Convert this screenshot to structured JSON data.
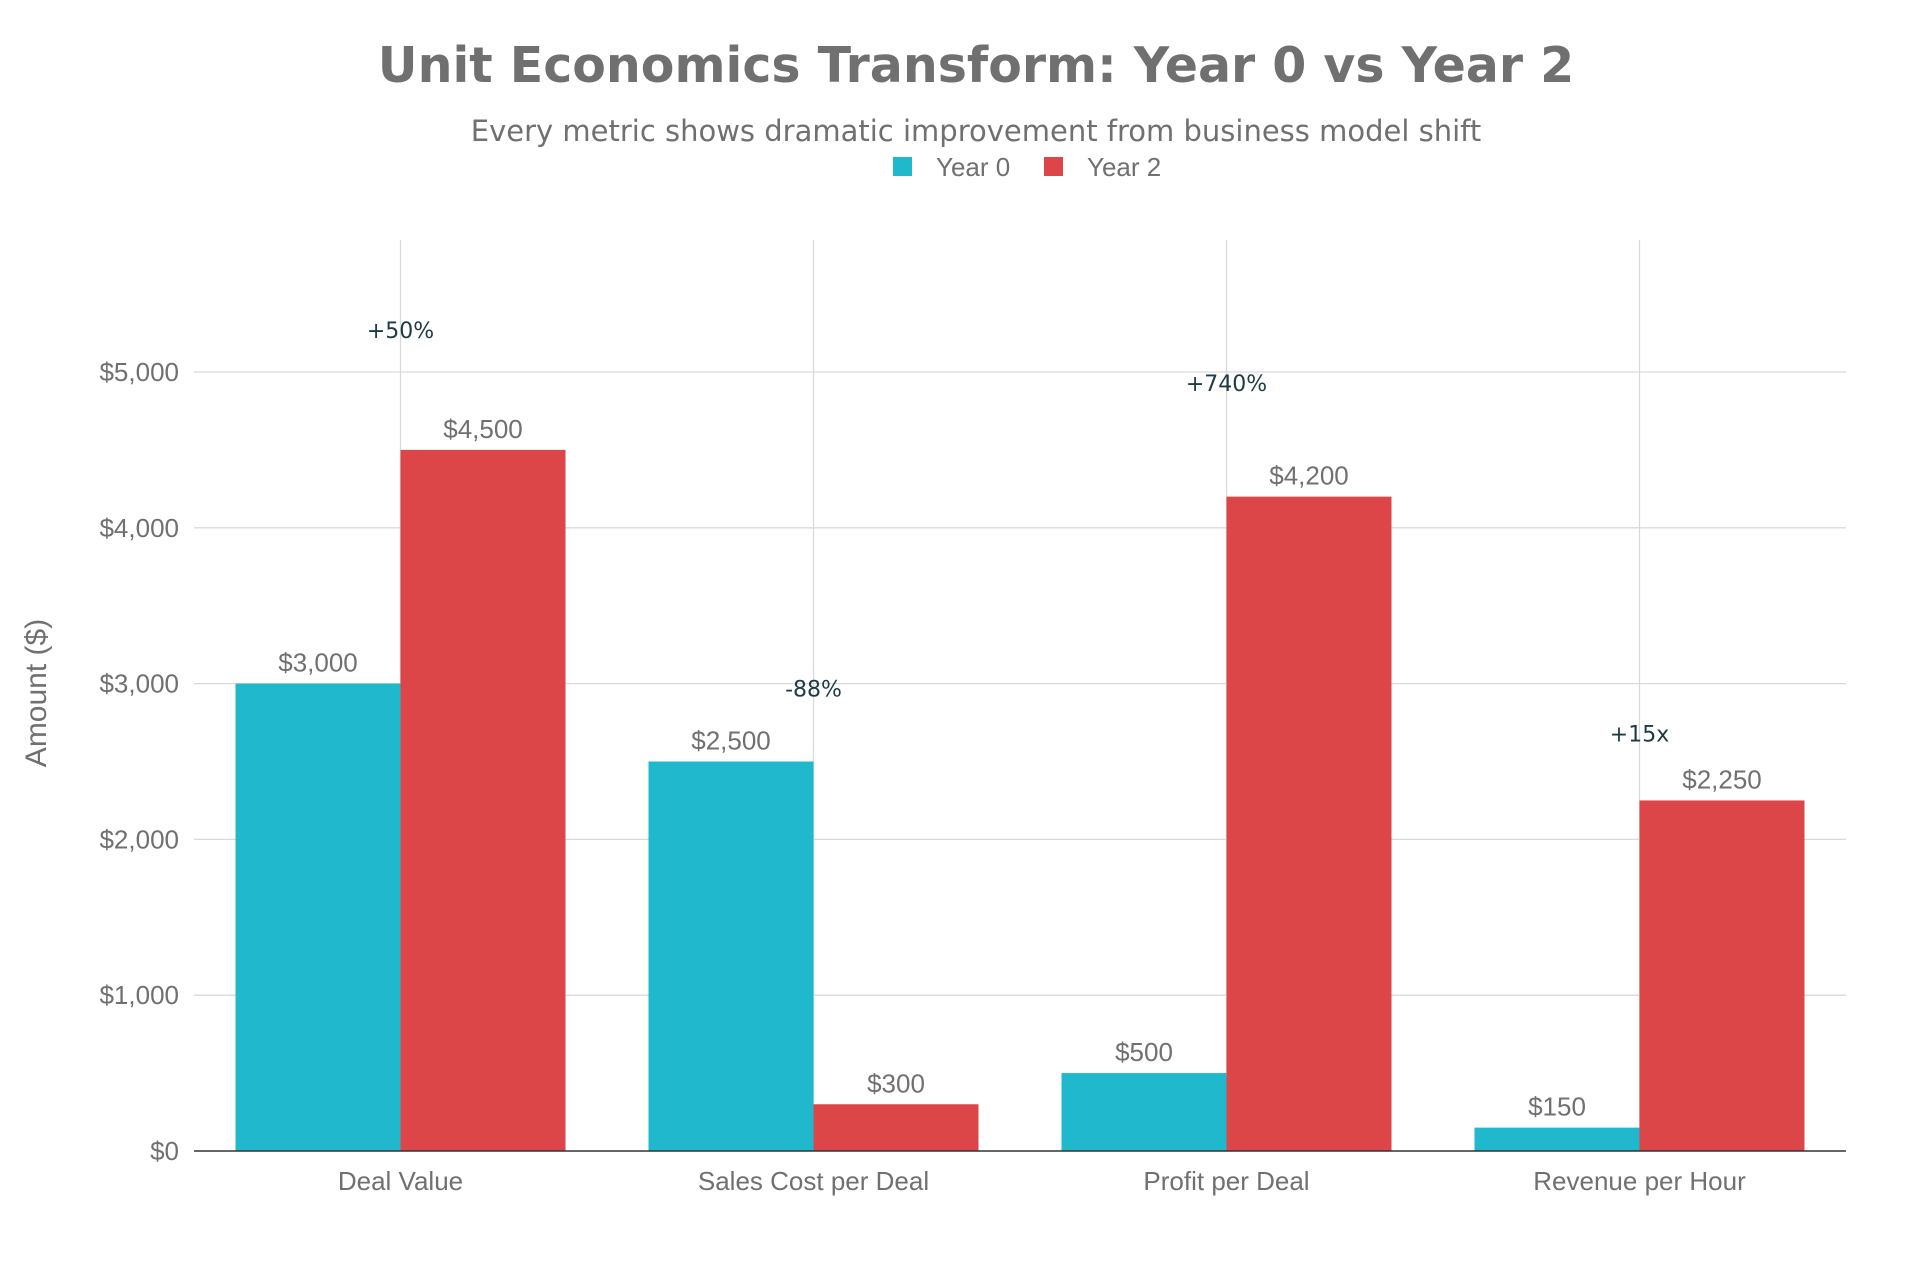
{
  "chart_data": {
    "type": "bar",
    "title": "Unit Economics Transform: Year 0 vs Year 2",
    "subtitle": "Every metric shows dramatic improvement from business model shift",
    "categories": [
      "Deal Value",
      "Sales Cost per Deal",
      "Profit per Deal",
      "Revenue per Hour"
    ],
    "series": [
      {
        "name": "Year 0",
        "color": "#20b8cd",
        "values": [
          3000,
          2500,
          500,
          150
        ],
        "labels": [
          "$3,000",
          "$2,500",
          "$500",
          "$150"
        ]
      },
      {
        "name": "Year 2",
        "color": "#dc4648",
        "values": [
          4500,
          300,
          4200,
          2250
        ],
        "labels": [
          "$4,500",
          "$300",
          "$4,200",
          "$2,250"
        ]
      }
    ],
    "annotations": [
      {
        "category": "Deal Value",
        "text": "+50%",
        "y": 5270
      },
      {
        "category": "Sales Cost per Deal",
        "text": "-88%",
        "y": 2970
      },
      {
        "category": "Profit per Deal",
        "text": "+740%",
        "y": 4930
      },
      {
        "category": "Revenue per Hour",
        "text": "+15x",
        "y": 2680
      }
    ],
    "xlabel": "",
    "ylabel": "Amount ($)",
    "ylim": [
      0,
      5850
    ],
    "yticks": [
      0,
      1000,
      2000,
      3000,
      4000,
      5000
    ],
    "ytick_labels": [
      "$0",
      "$1,000",
      "$2,000",
      "$3,000",
      "$4,000",
      "$5,000"
    ],
    "grid": true,
    "legend_position": "top-center"
  }
}
